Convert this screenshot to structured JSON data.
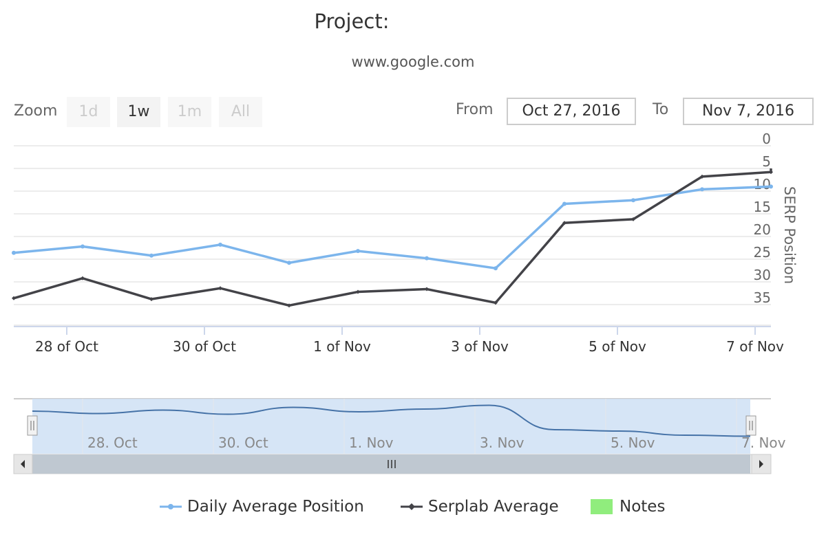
{
  "header": {
    "title": "Project:",
    "subtitle": "www.google.com"
  },
  "range_selector": {
    "zoom_label": "Zoom",
    "buttons": [
      "1d",
      "1w",
      "1m",
      "All"
    ],
    "active_button": "1w",
    "from_label": "From",
    "from_value": "Oct 27, 2016",
    "to_label": "To",
    "to_value": "Nov 7, 2016"
  },
  "chart_data": {
    "type": "line",
    "title": "Project:",
    "subtitle": "www.google.com",
    "ylabel": "SERP Position",
    "y_reversed": true,
    "ylim": [
      0,
      35
    ],
    "y_ticks": [
      "0",
      "5",
      "10",
      "15",
      "20",
      "25",
      "30",
      "35"
    ],
    "x_ticks": [
      "28 of Oct",
      "30 of Oct",
      "1 of Nov",
      "3 of Nov",
      "5 of Nov",
      "7 of Nov"
    ],
    "x": [
      "Oct 27",
      "Oct 28",
      "Oct 29",
      "Oct 30",
      "Oct 31",
      "Nov 1",
      "Nov 2",
      "Nov 3",
      "Nov 4",
      "Nov 5",
      "Nov 6",
      "Nov 7"
    ],
    "series": [
      {
        "name": "Daily Average Position",
        "color": "#7cb5ec",
        "values": [
          23.6,
          22.2,
          24.2,
          21.8,
          25.8,
          23.2,
          24.8,
          27,
          12.8,
          12,
          9.6,
          9
        ]
      },
      {
        "name": "Serplab Average",
        "color": "#434348",
        "values": [
          33.6,
          29.2,
          33.8,
          31.4,
          35.2,
          32.2,
          31.6,
          34.6,
          17,
          16.2,
          6.8,
          5.8
        ]
      }
    ],
    "legend_position": "bottom",
    "grid": true
  },
  "navigator": {
    "labels": [
      "28. Oct",
      "30. Oct",
      "1. Nov",
      "3. Nov",
      "5. Nov",
      "7. Nov"
    ]
  },
  "legend": {
    "items": [
      {
        "label": "Daily Average Position",
        "color": "#7cb5ec"
      },
      {
        "label": "Serplab Average",
        "color": "#434348"
      },
      {
        "label": "Notes",
        "color": "#90ed7d"
      }
    ]
  }
}
